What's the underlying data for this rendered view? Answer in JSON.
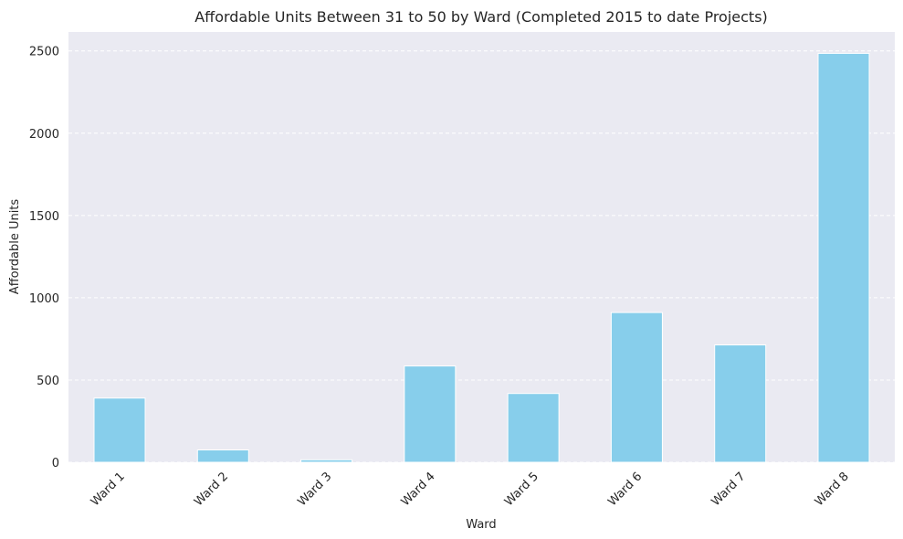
{
  "chart_data": {
    "type": "bar",
    "title": "Affordable Units Between 31 to 50 by Ward (Completed 2015 to date Projects)",
    "xlabel": "Ward",
    "ylabel": "Affordable Units",
    "categories": [
      "Ward 1",
      "Ward 2",
      "Ward 3",
      "Ward 4",
      "Ward 5",
      "Ward 6",
      "Ward 7",
      "Ward 8"
    ],
    "values": [
      390,
      75,
      15,
      585,
      418,
      910,
      713,
      2485
    ],
    "ylim": [
      0,
      2615
    ],
    "yticks": [
      0,
      500,
      1000,
      1500,
      2000,
      2500
    ],
    "grid": "horizontal dashed",
    "colors": {
      "bar": "#87ceeb",
      "background": "#eaeaf2",
      "grid": "#ffffff"
    }
  }
}
